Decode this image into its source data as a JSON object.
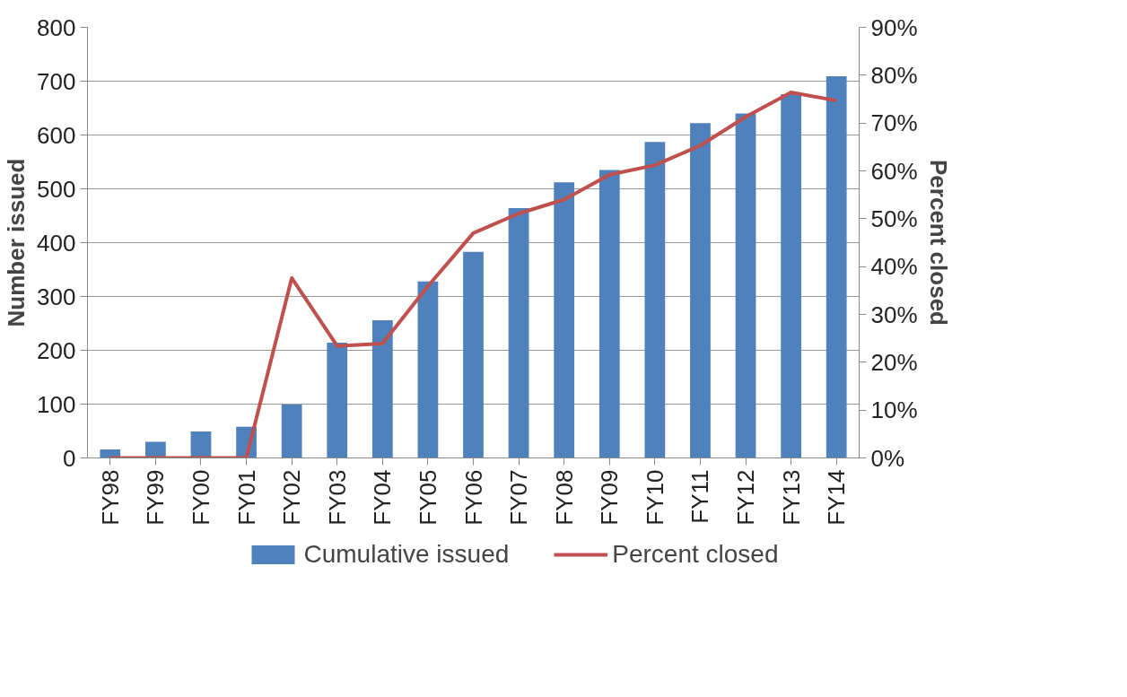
{
  "chart_data": {
    "type": "bar",
    "categories": [
      "FY98",
      "FY99",
      "FY00",
      "FY01",
      "FY02",
      "FY03",
      "FY04",
      "FY05",
      "FY06",
      "FY07",
      "FY08",
      "FY09",
      "FY10",
      "FY11",
      "FY12",
      "FY13",
      "FY14"
    ],
    "series": [
      {
        "name": "Cumulative issued",
        "color": "#4f81bd",
        "values": [
          16,
          30,
          49,
          58,
          99,
          214,
          256,
          328,
          383,
          464,
          512,
          535,
          587,
          622,
          640,
          676,
          709
        ]
      },
      {
        "name": "Percent closed",
        "type": "line",
        "axis": "y2",
        "color": "#c0504d",
        "values": [
          0,
          0,
          0,
          0,
          37.6,
          23.4,
          23.9,
          35.9,
          47.0,
          51.1,
          54.0,
          59.2,
          61.2,
          65.3,
          71.3,
          76.4,
          74.7
        ]
      }
    ],
    "ylabel": "Number issued",
    "y2label": "Percent closed",
    "ylim": [
      0,
      800
    ],
    "yticks": [
      0,
      100,
      200,
      300,
      400,
      500,
      600,
      700,
      800
    ],
    "y2lim": [
      0,
      90
    ],
    "y2ticks": [
      {
        "value": 0,
        "label": "0%"
      },
      {
        "value": 10,
        "label": "10%"
      },
      {
        "value": 20,
        "label": "20%"
      },
      {
        "value": 30,
        "label": "30%"
      },
      {
        "value": 40,
        "label": "40%"
      },
      {
        "value": 50,
        "label": "50%"
      },
      {
        "value": 60,
        "label": "60%"
      },
      {
        "value": 70,
        "label": "70%"
      },
      {
        "value": 80,
        "label": "80%"
      },
      {
        "value": 90,
        "label": "90%"
      }
    ],
    "grid": "y",
    "legend": "bottom",
    "marker": "none",
    "line_style": "solid"
  }
}
